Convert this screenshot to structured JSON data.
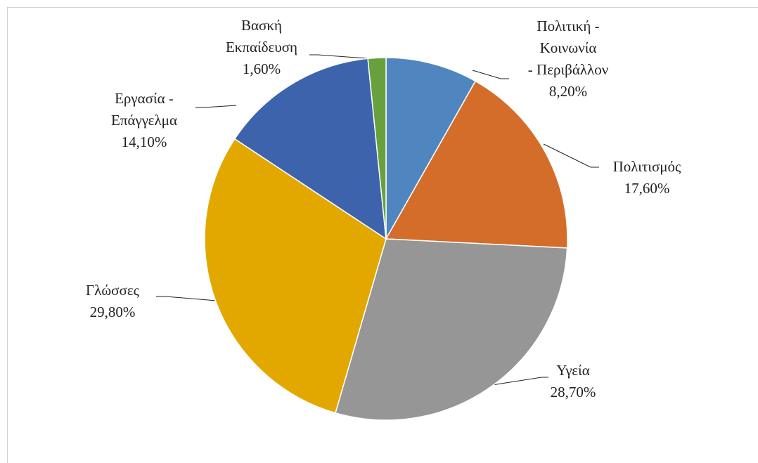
{
  "chart_data": {
    "type": "pie",
    "categories": [
      "Πολιτική -\nΚοινωνία\n- Περιβάλλον",
      "Πολιτισμός",
      "Υγεία",
      "Γλώσσες",
      "Εργασία -\nΕπάγγελμα",
      "Βασκή\nΕκπαίδευση"
    ],
    "values": [
      8.2,
      17.6,
      28.7,
      29.8,
      14.1,
      1.6
    ],
    "value_labels": [
      "8,20%",
      "17,60%",
      "28,70%",
      "29,80%",
      "14,10%",
      "1,60%"
    ],
    "colors": [
      "#4f86c0",
      "#d46d2a",
      "#969696",
      "#e2a800",
      "#3d63ad",
      "#67a03d"
    ]
  }
}
